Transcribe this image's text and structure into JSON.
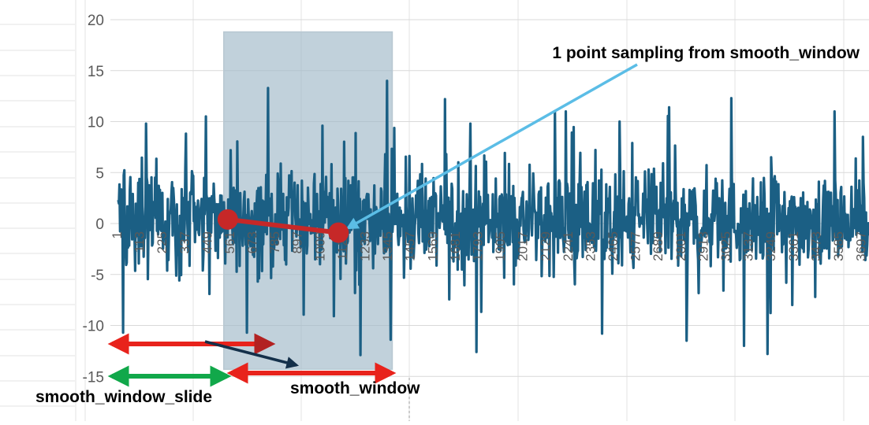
{
  "chart_data": {
    "type": "line",
    "title": "",
    "xlabel": "",
    "ylabel": "",
    "ylim": [
      -15,
      20
    ],
    "y_ticks": [
      -15,
      -10,
      -5,
      0,
      5,
      10,
      15,
      20
    ],
    "x_tick_labels": [
      "1",
      "113",
      "225",
      "337",
      "449",
      "561",
      "673",
      "785",
      "897",
      "1009",
      "1121",
      "1233",
      "1345",
      "1457",
      "1569",
      "1681",
      "1793",
      "1905",
      "2017",
      "2129",
      "2241",
      "2353",
      "2465",
      "2577",
      "2689",
      "2801",
      "2913",
      "3025",
      "3137",
      "3249",
      "3361",
      "3473",
      "3585",
      "3697"
    ],
    "x_range": [
      1,
      3730
    ],
    "grid": "horizontal",
    "legend": "none",
    "series": [
      {
        "color": "#1b5f84",
        "description": "noisy signal, about 3730 points, mostly between -5 and 6",
        "peaks": [
          {
            "x": 140,
            "y": 9.8
          },
          {
            "x": 435,
            "y": 10.5
          },
          {
            "x": 560,
            "y": 7.2
          },
          {
            "x": 745,
            "y": 13.3
          },
          {
            "x": 1015,
            "y": 9.6
          },
          {
            "x": 1335,
            "y": 14.0
          },
          {
            "x": 1625,
            "y": 12.2
          },
          {
            "x": 1750,
            "y": 9.8
          },
          {
            "x": 2225,
            "y": 11.0
          },
          {
            "x": 2490,
            "y": 10.0
          },
          {
            "x": 3045,
            "y": 12.3
          },
          {
            "x": 3560,
            "y": 11.0
          },
          {
            "x": 3700,
            "y": 8.5
          }
        ],
        "troughs": [
          {
            "x": 25,
            "y": -10.7
          },
          {
            "x": 640,
            "y": -10.7
          },
          {
            "x": 1205,
            "y": -13.4
          },
          {
            "x": 1355,
            "y": -11.4
          },
          {
            "x": 1780,
            "y": -12.6
          },
          {
            "x": 2405,
            "y": -10.8
          },
          {
            "x": 2825,
            "y": -11.5
          },
          {
            "x": 3110,
            "y": -12.0
          },
          {
            "x": 3225,
            "y": -12.8
          }
        ]
      }
    ],
    "sample_points": [
      {
        "x": 545,
        "y": 0.4
      },
      {
        "x": 1095,
        "y": -0.9
      }
    ],
    "window_highlight": {
      "x_start": 525,
      "x_end": 1362,
      "y_top": 18.8,
      "y_bottom": -14.3
    }
  },
  "annotations": {
    "sampling_label": "1 point sampling from smooth_window",
    "window_label": "smooth_window",
    "slide_label": "smooth_window_slide"
  },
  "colors": {
    "series": "#1b5f84",
    "window": "#9fb9c8",
    "sample_point": "#c62828",
    "pointer_arrow": "#5bbde6",
    "red_arrow": "#e8231c",
    "green_arrow": "#11a84a",
    "dark_arrow": "#14304a"
  }
}
